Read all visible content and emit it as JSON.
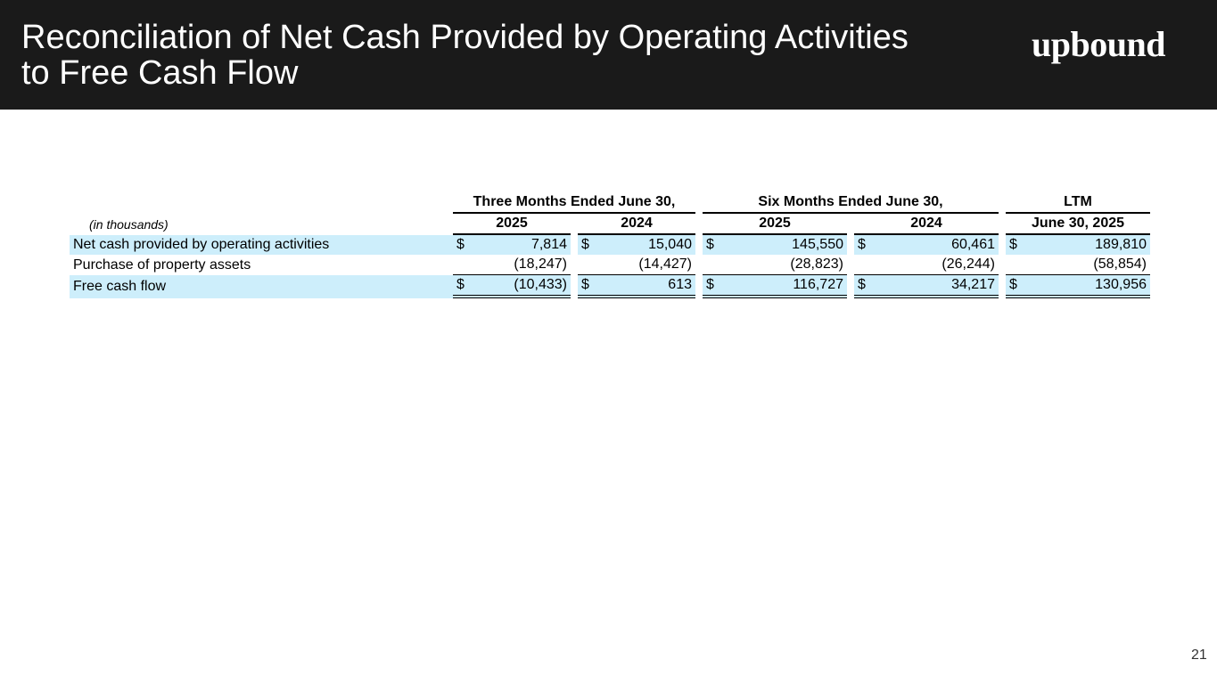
{
  "header": {
    "title_line1": "Reconciliation of Net Cash Provided by Operating Activities",
    "title_line2": "to Free Cash Flow",
    "logo_text": "upbound"
  },
  "page_number": "21",
  "table": {
    "groups": [
      "Three Months Ended June 30,",
      "Six Months Ended June 30,",
      "LTM"
    ],
    "units_label": "(in thousands)",
    "columns": [
      "2025",
      "2024",
      "2025",
      "2024",
      "June 30, 2025"
    ],
    "rows": [
      {
        "label": "Net cash provided by operating activities",
        "currency": [
          "$",
          "$",
          "$",
          "$",
          "$"
        ],
        "values": [
          "7,814",
          "15,040",
          "145,550",
          "60,461",
          "189,810"
        ]
      },
      {
        "label": "Purchase of property assets",
        "currency": [
          "",
          "",
          "",
          "",
          ""
        ],
        "values": [
          "(18,247)",
          "(14,427)",
          "(28,823)",
          "(26,244)",
          "(58,854)"
        ]
      },
      {
        "label": "Free cash flow",
        "currency": [
          "$",
          "$",
          "$",
          "$",
          "$"
        ],
        "values": [
          "(10,433)",
          "613",
          "116,727",
          "34,217",
          "130,956"
        ]
      }
    ]
  },
  "colors": {
    "header_bg": "#1a1a1a",
    "row_highlight": "#cdeefb"
  }
}
